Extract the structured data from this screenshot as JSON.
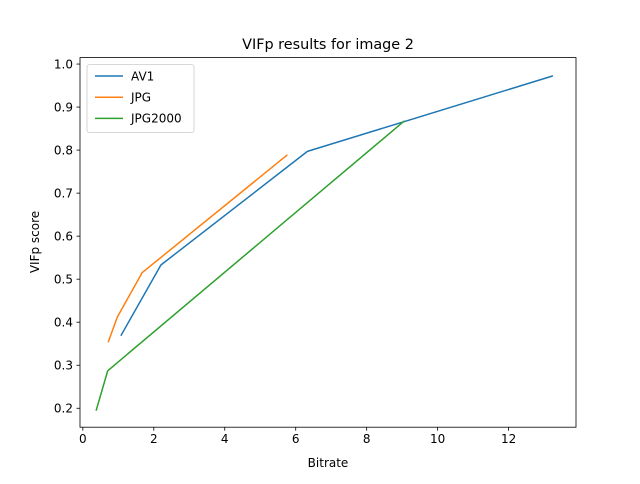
{
  "chart_data": {
    "type": "line",
    "title": "VIFp results for image 2",
    "xlabel": "Bitrate",
    "ylabel": "VIFp score",
    "xlim": [
      -0.08,
      13.9
    ],
    "ylim": [
      0.156,
      1.015
    ],
    "xticks": [
      0,
      2,
      4,
      6,
      8,
      10,
      12
    ],
    "yticks": [
      0.2,
      0.3,
      0.4,
      0.5,
      0.6,
      0.7,
      0.8,
      0.9,
      1.0
    ],
    "xtick_labels": [
      "0",
      "2",
      "4",
      "6",
      "8",
      "10",
      "12"
    ],
    "ytick_labels": [
      "0.2",
      "0.3",
      "0.4",
      "0.5",
      "0.6",
      "0.7",
      "0.8",
      "0.9",
      "1.0"
    ],
    "grid": false,
    "legend_position": "top-left",
    "series": [
      {
        "name": "AV1",
        "color": "#1f77b4",
        "x": [
          1.08,
          2.2,
          6.33,
          13.23
        ],
        "y": [
          0.37,
          0.533,
          0.797,
          0.972
        ]
      },
      {
        "name": "JPG",
        "color": "#ff7f0e",
        "x": [
          0.72,
          0.97,
          1.67,
          5.75
        ],
        "y": [
          0.355,
          0.412,
          0.515,
          0.788
        ]
      },
      {
        "name": "JPG2000",
        "color": "#2ca02c",
        "x": [
          0.38,
          0.7,
          9.05
        ],
        "y": [
          0.196,
          0.287,
          0.867
        ]
      }
    ]
  }
}
